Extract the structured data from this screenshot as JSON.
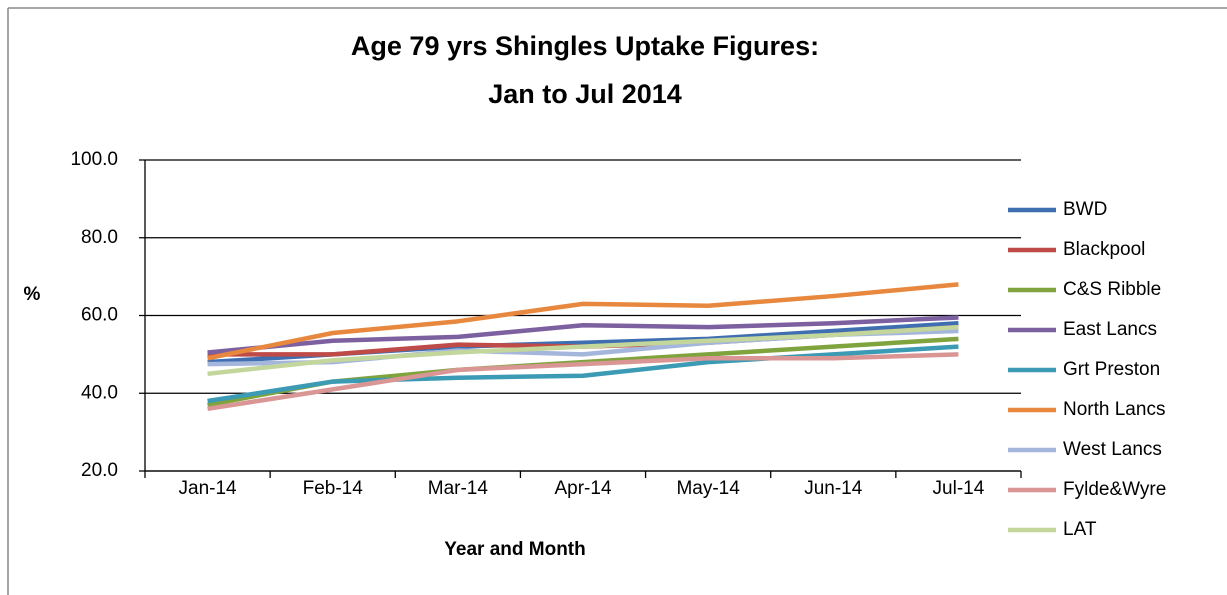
{
  "chart_data": {
    "type": "line",
    "title": [
      "Age 79 yrs Shingles Uptake Figures:",
      "Jan to Jul 2014"
    ],
    "y_label": "%",
    "x_label": "Year and Month",
    "categories": [
      "Jan-14",
      "Feb-14",
      "Mar-14",
      "Apr-14",
      "May-14",
      "Jun-14",
      "Jul-14"
    ],
    "series": [
      {
        "name": "BWD",
        "color": "#3f6fb0",
        "values": [
          48,
          50,
          52,
          53,
          54,
          56,
          58
        ]
      },
      {
        "name": "Blackpool",
        "color": "#be4b48",
        "values": [
          50,
          50,
          52.5,
          52,
          53,
          55,
          57
        ]
      },
      {
        "name": "C&S Ribble",
        "color": "#7fa33d",
        "values": [
          37,
          43,
          46,
          48,
          50,
          52,
          54
        ]
      },
      {
        "name": "East Lancs",
        "color": "#7d60a0",
        "values": [
          50.5,
          53.5,
          54.5,
          57.5,
          57,
          58,
          59.5
        ]
      },
      {
        "name": "Grt Preston",
        "color": "#3b9ab4",
        "values": [
          38,
          43,
          44,
          44.5,
          48,
          50,
          52
        ]
      },
      {
        "name": "North Lancs",
        "color": "#e8883e",
        "values": [
          49,
          55.5,
          58.5,
          63,
          62.5,
          65,
          68
        ]
      },
      {
        "name": "West Lancs",
        "color": "#a5b6dc",
        "values": [
          47.5,
          48,
          51,
          50,
          53,
          55,
          56
        ]
      },
      {
        "name": "Fylde&Wyre",
        "color": "#d99694",
        "values": [
          36,
          41,
          46,
          47.5,
          49,
          49,
          50
        ]
      },
      {
        "name": "LAT",
        "color": "#c3d69b",
        "values": [
          45,
          48.5,
          50.5,
          52,
          53.5,
          55,
          57
        ]
      }
    ],
    "ylim": [
      20,
      100
    ],
    "yticks": [
      {
        "value": 20,
        "label": "20.0"
      },
      {
        "value": 40,
        "label": "40.0"
      },
      {
        "value": 60,
        "label": "60.0"
      },
      {
        "value": 80,
        "label": "80.0"
      },
      {
        "value": 100,
        "label": "100.0"
      }
    ],
    "grid": true,
    "legend": "right"
  }
}
